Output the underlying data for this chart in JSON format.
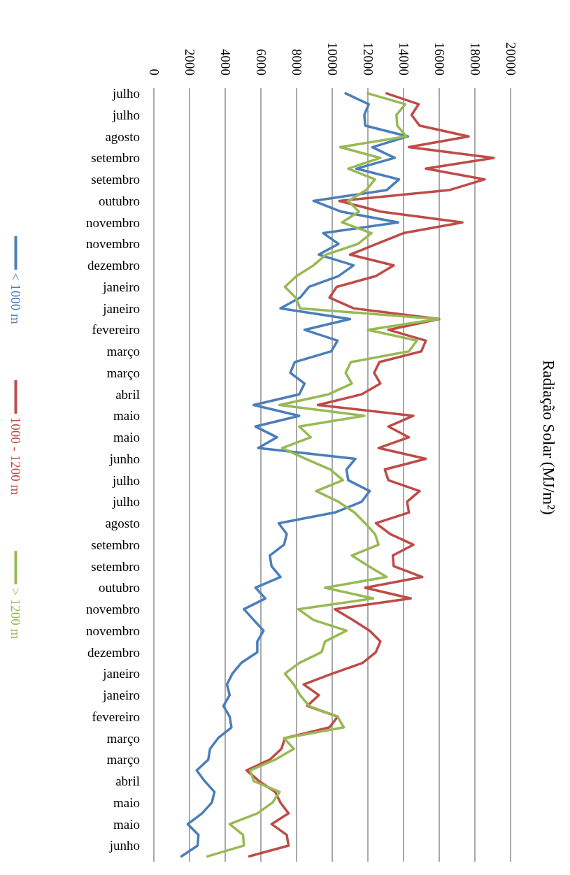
{
  "chart_data": {
    "type": "line",
    "title": "Radiação Solar (MJ/m²)",
    "categories": [
      "julho",
      null,
      "julho",
      null,
      "agosto",
      null,
      "setembro",
      null,
      "setembro",
      null,
      "outubro",
      null,
      "novembro",
      null,
      "novembro",
      null,
      "dezembro",
      null,
      "janeiro",
      null,
      "janeiro",
      null,
      "fevereiro",
      null,
      "março",
      null,
      "março",
      null,
      "abril",
      null,
      "maio",
      null,
      "maio",
      null,
      "junho",
      null,
      "julho",
      null,
      "julho",
      null,
      "agosto",
      null,
      "setembro",
      null,
      "setembro",
      null,
      "outubro",
      null,
      "novembro",
      null,
      "novembro",
      null,
      "dezembro",
      null,
      "janeiro",
      null,
      "janeiro",
      null,
      "fevereiro",
      null,
      "março",
      null,
      "março",
      null,
      "abril",
      null,
      "maio",
      null,
      "maio",
      null,
      "junho",
      null
    ],
    "series": [
      {
        "name": "< 1000 m",
        "color": "#4a7ebb",
        "values": [
          10750,
          12050,
          11800,
          11850,
          14250,
          12250,
          13500,
          11350,
          13750,
          13050,
          8950,
          10500,
          13700,
          9500,
          10350,
          9250,
          11200,
          10350,
          8700,
          8200,
          7100,
          11000,
          8450,
          10300,
          9950,
          7900,
          7650,
          8450,
          8150,
          5600,
          8150,
          5700,
          6900,
          5850,
          11300,
          10800,
          10900,
          12100,
          11650,
          10150,
          7000,
          7450,
          7300,
          6500,
          6600,
          7100,
          5700,
          6250,
          5050,
          5600,
          6150,
          5800,
          5800,
          4900,
          4400,
          4100,
          4250,
          3900,
          4250,
          4350,
          3600,
          3150,
          3050,
          2400,
          2850,
          3400,
          3250,
          2700,
          1900,
          2500,
          2450,
          1550
        ]
      },
      {
        "name": "1000 - 1200 m",
        "color": "#be4b48",
        "values": [
          13050,
          14850,
          14450,
          14900,
          17650,
          14300,
          19050,
          15250,
          18550,
          16550,
          10400,
          12700,
          17300,
          14000,
          12500,
          11000,
          13450,
          12450,
          10250,
          9850,
          11200,
          16000,
          13150,
          15250,
          15000,
          12650,
          12350,
          12700,
          11650,
          9200,
          14550,
          13150,
          14300,
          12600,
          15250,
          12950,
          13150,
          14900,
          14200,
          14300,
          12450,
          13250,
          14550,
          13400,
          13450,
          15050,
          11850,
          14400,
          10150,
          11150,
          12100,
          12700,
          12450,
          11700,
          10000,
          8400,
          9250,
          8600,
          10300,
          9850,
          7350,
          7150,
          6500,
          5200,
          5900,
          6800,
          7100,
          7550,
          6600,
          7450,
          7550,
          5350
        ]
      },
      {
        "name": "> 1200 m",
        "color": "#98b954",
        "values": [
          12000,
          14100,
          13600,
          13650,
          14150,
          10450,
          12700,
          10900,
          12400,
          11900,
          10900,
          11500,
          10550,
          12200,
          11450,
          9650,
          8950,
          8000,
          7350,
          7950,
          8200,
          15950,
          12000,
          14750,
          14300,
          11050,
          10750,
          11100,
          9800,
          7050,
          11800,
          8150,
          8800,
          7200,
          8500,
          9900,
          10600,
          9100,
          10350,
          11250,
          11850,
          12400,
          12600,
          11100,
          12050,
          13050,
          9600,
          12300,
          8100,
          8950,
          10800,
          9600,
          9400,
          8150,
          7350,
          7850,
          8200,
          8700,
          10300,
          10650,
          7300,
          7850,
          6800,
          5400,
          5600,
          7050,
          6650,
          5800,
          4250,
          5000,
          5050,
          3000
        ]
      }
    ],
    "orientation": "horizontal",
    "xlim": [
      0,
      20000
    ],
    "xticks": [
      0,
      2000,
      4000,
      6000,
      8000,
      10000,
      12000,
      14000,
      16000,
      18000,
      20000
    ],
    "grid": "x",
    "legend": "left",
    "marker": "none"
  }
}
